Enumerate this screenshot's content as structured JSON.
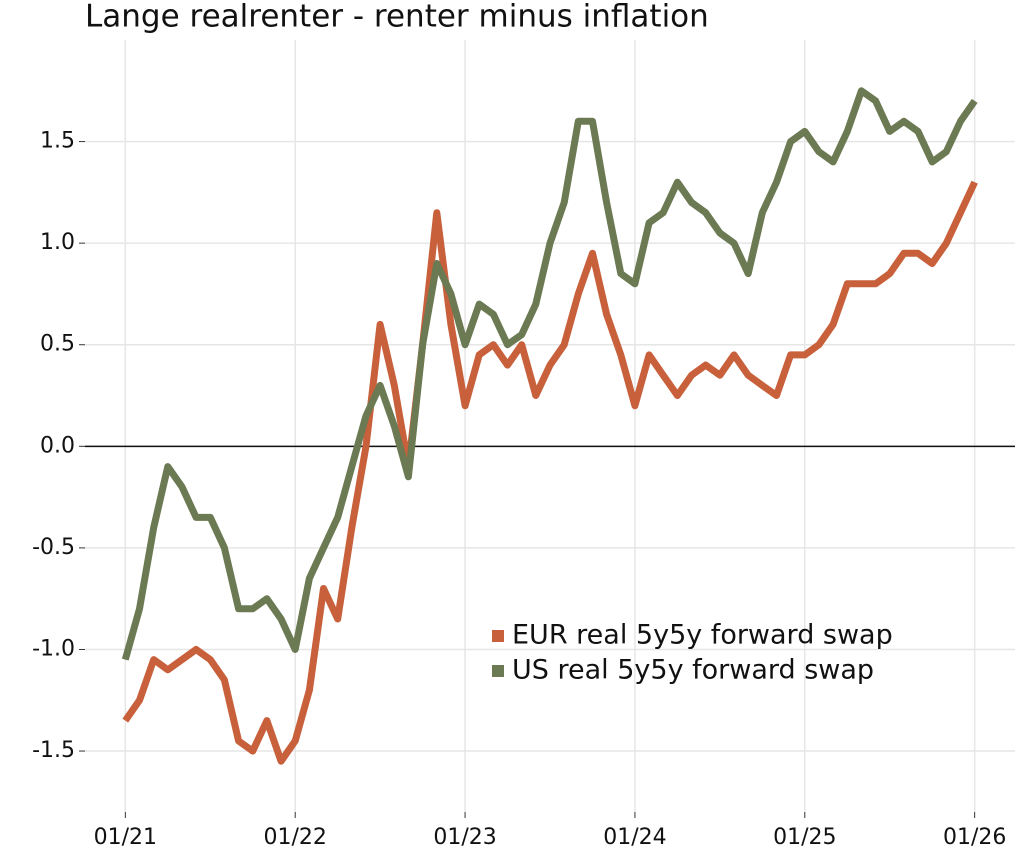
{
  "chart_data": {
    "type": "line",
    "title": "Lange realrenter - renter minus inflation",
    "x": [
      "01/21",
      "02/21",
      "03/21",
      "04/21",
      "05/21",
      "06/21",
      "07/21",
      "08/21",
      "09/21",
      "10/21",
      "11/21",
      "12/21",
      "01/22",
      "02/22",
      "03/22",
      "04/22",
      "05/22",
      "06/22",
      "07/22",
      "08/22",
      "09/22",
      "10/22",
      "11/22",
      "12/22",
      "01/23",
      "02/23",
      "03/23",
      "04/23",
      "05/23",
      "06/23",
      "07/23",
      "08/23",
      "09/23",
      "10/23",
      "11/23",
      "12/23",
      "01/24",
      "02/24",
      "03/24",
      "04/24",
      "05/24",
      "06/24",
      "07/24",
      "08/24",
      "09/24",
      "10/24",
      "11/24",
      "12/24",
      "01/25",
      "02/25",
      "03/25",
      "04/25",
      "05/25",
      "06/25",
      "07/25",
      "08/25",
      "09/25",
      "10/25",
      "11/25",
      "12/25",
      "01/26"
    ],
    "series": [
      {
        "name": "EUR real 5y5y forward swap",
        "color": "#c8603c",
        "values": [
          -1.35,
          -1.25,
          -1.05,
          -1.1,
          -1.05,
          -1.0,
          -1.05,
          -1.15,
          -1.45,
          -1.5,
          -1.35,
          -1.55,
          -1.45,
          -1.2,
          -0.7,
          -0.85,
          -0.4,
          0.0,
          0.6,
          0.3,
          -0.1,
          0.5,
          1.15,
          0.6,
          0.2,
          0.45,
          0.5,
          0.4,
          0.5,
          0.25,
          0.4,
          0.5,
          0.75,
          0.95,
          0.65,
          0.45,
          0.2,
          0.45,
          0.35,
          0.25,
          0.35,
          0.4,
          0.35,
          0.45,
          0.35,
          0.3,
          0.25,
          0.45,
          0.45,
          0.5,
          0.6,
          0.8,
          0.8,
          0.8,
          0.85,
          0.95,
          0.95,
          0.9,
          1.0,
          1.15,
          1.3
        ]
      },
      {
        "name": "US real 5y5y forward swap",
        "color": "#6b7a52",
        "values": [
          -1.05,
          -0.8,
          -0.4,
          -0.1,
          -0.2,
          -0.35,
          -0.35,
          -0.5,
          -0.8,
          -0.8,
          -0.75,
          -0.85,
          -1.0,
          -0.65,
          -0.5,
          -0.35,
          -0.1,
          0.15,
          0.3,
          0.1,
          -0.15,
          0.5,
          0.9,
          0.75,
          0.5,
          0.7,
          0.65,
          0.5,
          0.55,
          0.7,
          1.0,
          1.2,
          1.6,
          1.6,
          1.2,
          0.85,
          0.8,
          1.1,
          1.15,
          1.3,
          1.2,
          1.15,
          1.05,
          1.0,
          0.85,
          1.15,
          1.3,
          1.5,
          1.55,
          1.45,
          1.4,
          1.55,
          1.75,
          1.7,
          1.55,
          1.6,
          1.55,
          1.4,
          1.45,
          1.6,
          1.7
        ]
      }
    ],
    "xticks": [
      "01/21",
      "01/22",
      "01/23",
      "01/24",
      "01/25",
      "01/26"
    ],
    "ylim": [
      -1.8,
      2.0
    ],
    "yticks": [
      {
        "value": -1.5,
        "label": "-1.5"
      },
      {
        "value": -1.0,
        "label": "-1.0"
      },
      {
        "value": -0.5,
        "label": "-0.5"
      },
      {
        "value": 0,
        "label": "0.0"
      },
      {
        "value": 0.5,
        "label": "0.5"
      },
      {
        "value": 1.0,
        "label": "1.0"
      },
      {
        "value": 1.5,
        "label": "1.5"
      }
    ],
    "reference_line": 0,
    "grid": true,
    "legend": "right"
  }
}
